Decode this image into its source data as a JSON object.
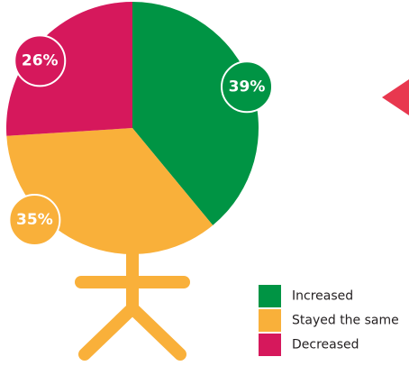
{
  "chart_data": {
    "type": "pie",
    "categories": [
      "Increased",
      "Stayed the same",
      "Decreased"
    ],
    "values": [
      39,
      35,
      26
    ],
    "value_labels": [
      "39%",
      "35%",
      "26%"
    ],
    "colors": [
      "#009444",
      "#f9b03a",
      "#d6185c"
    ]
  }
}
